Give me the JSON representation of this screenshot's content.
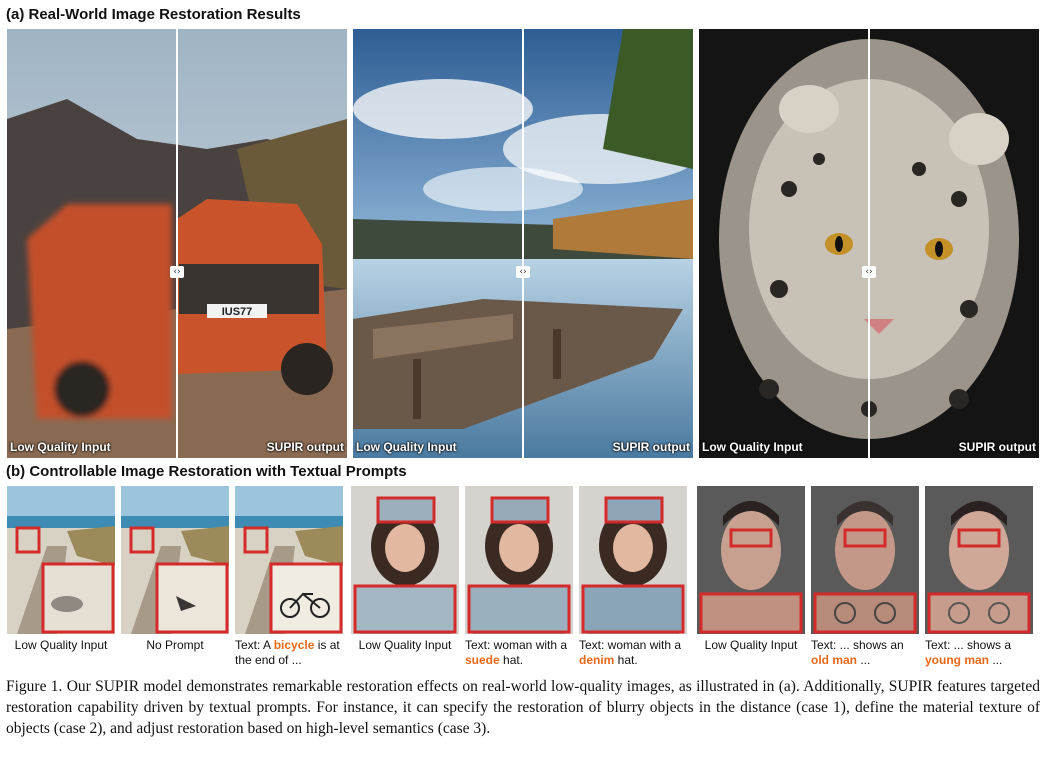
{
  "section_a": {
    "title": "(a) Real-World Image Restoration Results"
  },
  "section_b": {
    "title": "(b) Controllable Image Restoration with Textual Prompts"
  },
  "comparisons": [
    {
      "subject": "car",
      "left_label": "Low Quality Input",
      "right_label": "SUPIR output",
      "plate": "IUS77"
    },
    {
      "subject": "lake",
      "left_label": "Low Quality Input",
      "right_label": "SUPIR output"
    },
    {
      "subject": "snow leopard",
      "left_label": "Low Quality Input",
      "right_label": "SUPIR output"
    }
  ],
  "handle_glyph": "‹›",
  "captions": {
    "c1": "Low Quality Input",
    "c2": "No Prompt",
    "c3_pre": "Text: A ",
    "c3_hl": "bicycle",
    "c3_post": " is at the end of ...",
    "c4": "Low Quality Input",
    "c5_pre": "Text: woman with a ",
    "c5_hl": "suede",
    "c5_post": " hat.",
    "c6_pre": "Text: woman with a ",
    "c6_hl": "denim",
    "c6_post": " hat.",
    "c7": "Low Quality Input",
    "c8_pre": "Text: ... shows an ",
    "c8_hl": "old man",
    "c8_post": " ...",
    "c9_pre": "Text: ... shows a ",
    "c9_hl": "young man",
    "c9_post": " ..."
  },
  "figure_caption": "Figure 1.  Our SUPIR model demonstrates remarkable restoration effects on real-world low-quality images, as illustrated in (a). Additionally, SUPIR features targeted restoration capability driven by textual prompts. For instance, it can specify the restoration of blurry objects in the distance (case 1), define the material texture of objects (case 2), and adjust restoration based on high-level semantics (case 3).",
  "colors": {
    "highlight": "#e8681a",
    "box": "#d42a2a"
  }
}
